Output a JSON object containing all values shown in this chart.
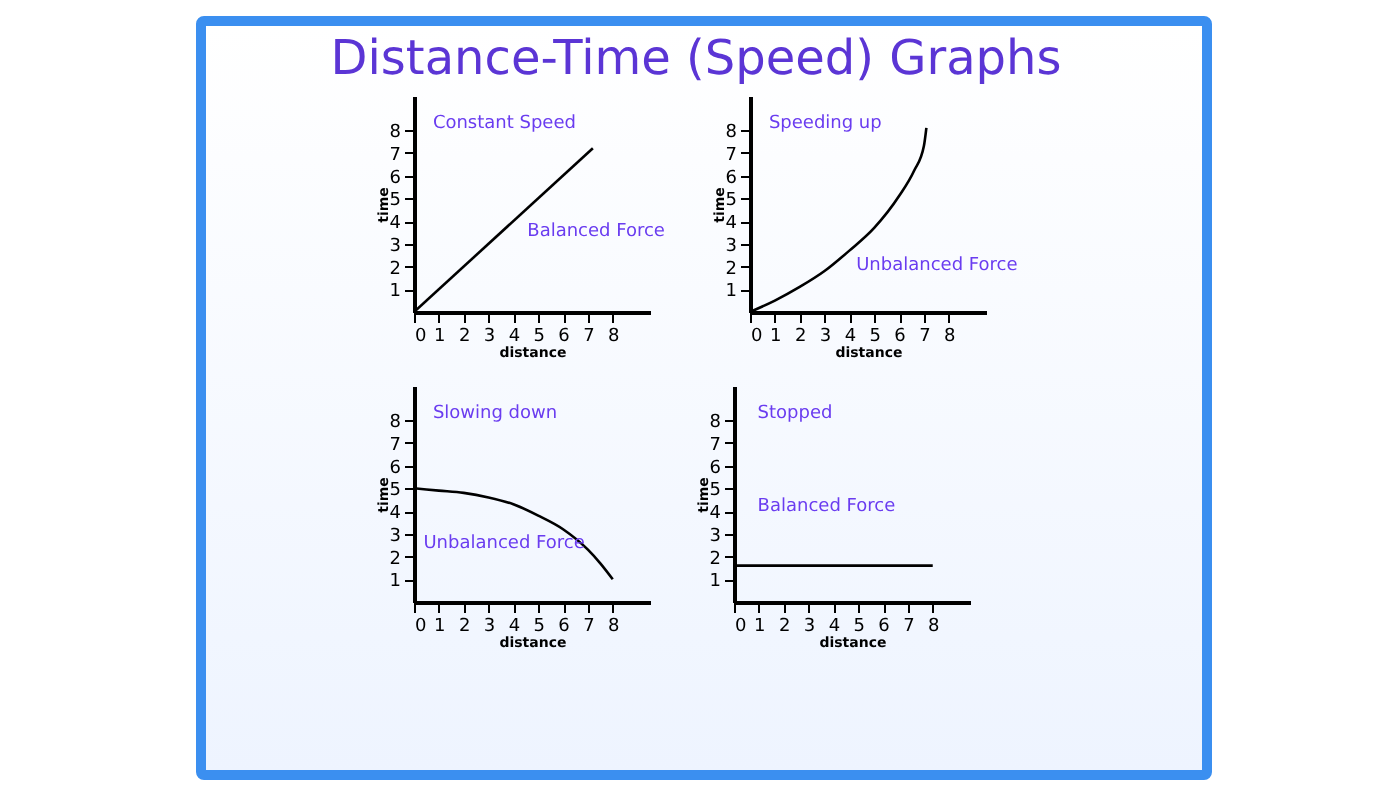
{
  "chart_data": [
    {
      "type": "line",
      "title": "Distance-Time (Speed) Graphs",
      "xlabel": "distance",
      "ylabel": "time",
      "xlim": [
        0,
        9.5
      ],
      "ylim": [
        0,
        9.5
      ],
      "xticks": [
        0,
        1,
        2,
        3,
        4,
        5,
        6,
        7,
        8
      ],
      "yticks": [
        1,
        2,
        3,
        4,
        5,
        6,
        7,
        8
      ],
      "annotations": [
        "Constant Speed",
        "Balanced Force"
      ],
      "series": [
        {
          "color": "#000000",
          "x": [
            0,
            7.2
          ],
          "values": [
            0,
            7.2
          ]
        }
      ]
    },
    {
      "type": "line",
      "xlabel": "distance",
      "ylabel": "time",
      "xlim": [
        0,
        9.5
      ],
      "ylim": [
        0,
        9.5
      ],
      "xticks": [
        0,
        1,
        2,
        3,
        4,
        5,
        6,
        7,
        8
      ],
      "yticks": [
        1,
        2,
        3,
        4,
        5,
        6,
        7,
        8
      ],
      "annotations": [
        "Speeding up",
        "Unbalanced Force"
      ],
      "series": [
        {
          "color": "#000000",
          "x": [
            0,
            1,
            2,
            3,
            4,
            5,
            6,
            6.6,
            7,
            7.1
          ],
          "values": [
            0,
            0.5,
            1.1,
            1.8,
            2.7,
            3.7,
            5.1,
            6.2,
            7.3,
            8.1
          ]
        }
      ]
    },
    {
      "type": "line",
      "xlabel": "distance",
      "ylabel": "time",
      "xlim": [
        0,
        9.5
      ],
      "ylim": [
        0,
        9.5
      ],
      "xticks": [
        0,
        1,
        2,
        3,
        4,
        5,
        6,
        7,
        8
      ],
      "yticks": [
        1,
        2,
        3,
        4,
        5,
        6,
        7,
        8
      ],
      "annotations": [
        "Slowing down",
        "Unbalanced Force"
      ],
      "series": [
        {
          "color": "#000000",
          "x": [
            0,
            1,
            2,
            3,
            4,
            5,
            6,
            7,
            7.5,
            8
          ],
          "values": [
            5,
            4.9,
            4.8,
            4.6,
            4.3,
            3.8,
            3.2,
            2.3,
            1.7,
            1
          ]
        }
      ]
    },
    {
      "type": "line",
      "xlabel": "distance",
      "ylabel": "time",
      "xlim": [
        0,
        9.5
      ],
      "ylim": [
        0,
        9.5
      ],
      "xticks": [
        0,
        1,
        2,
        3,
        4,
        5,
        6,
        7,
        8
      ],
      "yticks": [
        1,
        2,
        3,
        4,
        5,
        6,
        7,
        8
      ],
      "annotations": [
        "Stopped",
        "Balanced Force"
      ],
      "series": [
        {
          "color": "#000000",
          "x": [
            0,
            8
          ],
          "values": [
            1.6,
            1.6
          ]
        }
      ]
    }
  ]
}
